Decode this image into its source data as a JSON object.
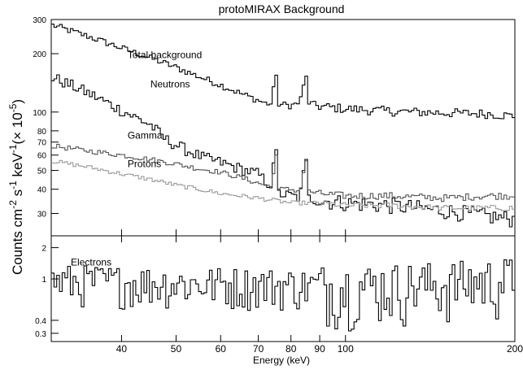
{
  "chart_data": {
    "type": "line",
    "style": "step histogram, log-log axes, two stacked panels sharing the energy axis",
    "title": "protoMIRAX Background",
    "xlabel": "Energy (keV)",
    "ylabel_main": "Counts cm",
    "ylabel_sup1": "-2",
    "ylabel_mid": " s",
    "ylabel_sup2": "-1",
    "ylabel_mid2": " keV",
    "ylabel_sup3": "-1",
    "ylabel_mid3": "(× 10",
    "ylabel_sup4": "-5",
    "ylabel_end": ")",
    "x_scale": "log",
    "y_scale": "log",
    "xlim": [
      30,
      200
    ],
    "x_tick_labels": [
      "40",
      "50",
      "60",
      "70",
      "80",
      "90",
      "100",
      "200"
    ],
    "x_ticks": [
      40,
      50,
      60,
      70,
      80,
      90,
      100,
      200
    ],
    "top_panel": {
      "ylim": [
        23,
        300
      ],
      "y_tick_labels": [
        "30",
        "40",
        "50",
        "60",
        "70",
        "80",
        "100",
        "200",
        "300"
      ],
      "y_ticks": [
        30,
        40,
        50,
        60,
        70,
        80,
        100,
        200,
        300
      ],
      "series": [
        {
          "name": "Total background",
          "color": "#000000",
          "label_x": 41,
          "label_y": 190,
          "points": [
            [
              30,
              282
            ],
            [
              35,
              245
            ],
            [
              40,
              214
            ],
            [
              45,
              190
            ],
            [
              50,
              170
            ],
            [
              55,
              152
            ],
            [
              60,
              138
            ],
            [
              65,
              125
            ],
            [
              70,
              115
            ],
            [
              72,
              111
            ],
            [
              74,
              110
            ],
            [
              75,
              155
            ],
            [
              76,
              110
            ],
            [
              80,
              108
            ],
            [
              83,
              112
            ],
            [
              85,
              153
            ],
            [
              86,
              112
            ],
            [
              90,
              107
            ],
            [
              100,
              104
            ],
            [
              120,
              101
            ],
            [
              150,
              99
            ],
            [
              180,
              98
            ],
            [
              200,
              95
            ]
          ],
          "peaks": [
            75,
            85
          ],
          "noise": 0.04
        },
        {
          "name": "Neutrons",
          "color": "#000000",
          "label_x": 45,
          "label_y": 134,
          "points": [
            [
              30,
              152
            ],
            [
              33,
              135
            ],
            [
              36,
              120
            ],
            [
              40,
              102
            ],
            [
              45,
              86
            ],
            [
              48,
              72
            ],
            [
              52,
              64
            ],
            [
              56,
              58
            ],
            [
              60,
              55
            ],
            [
              65,
              51
            ],
            [
              70,
              48
            ],
            [
              72,
              44
            ],
            [
              74,
              42
            ],
            [
              75,
              64
            ],
            [
              76,
              38
            ],
            [
              80,
              37
            ],
            [
              83,
              36
            ],
            [
              85,
              57
            ],
            [
              86,
              36
            ],
            [
              90,
              35
            ],
            [
              100,
              34
            ],
            [
              120,
              33
            ],
            [
              150,
              31
            ],
            [
              180,
              29
            ],
            [
              200,
              28
            ]
          ],
          "peaks": [
            75,
            85
          ],
          "noise": 0.07
        },
        {
          "name": "Gamma",
          "color": "#555555",
          "label_x": 41,
          "label_y": 73,
          "points": [
            [
              30,
              67
            ],
            [
              35,
              63
            ],
            [
              40,
              60
            ],
            [
              45,
              57
            ],
            [
              50,
              54
            ],
            [
              55,
              51
            ],
            [
              60,
              49
            ],
            [
              65,
              46
            ],
            [
              70,
              43
            ],
            [
              72,
              42
            ],
            [
              74,
              41
            ],
            [
              75,
              60
            ],
            [
              76,
              40
            ],
            [
              80,
              40
            ],
            [
              83,
              39
            ],
            [
              85,
              56
            ],
            [
              86,
              39
            ],
            [
              90,
              38
            ],
            [
              100,
              37
            ],
            [
              120,
              37
            ],
            [
              150,
              36
            ],
            [
              180,
              37
            ],
            [
              200,
              37
            ]
          ],
          "peaks": [
            75,
            85
          ],
          "noise": 0.03
        },
        {
          "name": "Protons",
          "color": "#9a9a9a",
          "label_x": 41,
          "label_y": 52,
          "points": [
            [
              30,
              56
            ],
            [
              35,
              52
            ],
            [
              40,
              48
            ],
            [
              45,
              45
            ],
            [
              50,
              42
            ],
            [
              55,
              40
            ],
            [
              60,
              38
            ],
            [
              65,
              37
            ],
            [
              70,
              36
            ],
            [
              75,
              35
            ],
            [
              80,
              34
            ],
            [
              85,
              34
            ],
            [
              90,
              34
            ],
            [
              100,
              33
            ],
            [
              120,
              33
            ],
            [
              150,
              32
            ],
            [
              180,
              32
            ],
            [
              200,
              32
            ]
          ],
          "peaks": [],
          "noise": 0.025
        }
      ]
    },
    "bottom_panel": {
      "ylim": [
        0.25,
        2.6
      ],
      "y_tick_labels": [
        "0.3",
        "0.4",
        "1",
        "2"
      ],
      "y_ticks": [
        0.3,
        0.4,
        1,
        2
      ],
      "series": [
        {
          "name": "Electrons",
          "color": "#000000",
          "label_x": 32.5,
          "label_y": 1.35,
          "points": [
            [
              30,
              0.95
            ],
            [
              60,
              0.9
            ],
            [
              100,
              0.85
            ],
            [
              150,
              0.9
            ],
            [
              200,
              1.0
            ]
          ],
          "peaks": [],
          "noise": 0.45
        }
      ]
    }
  }
}
